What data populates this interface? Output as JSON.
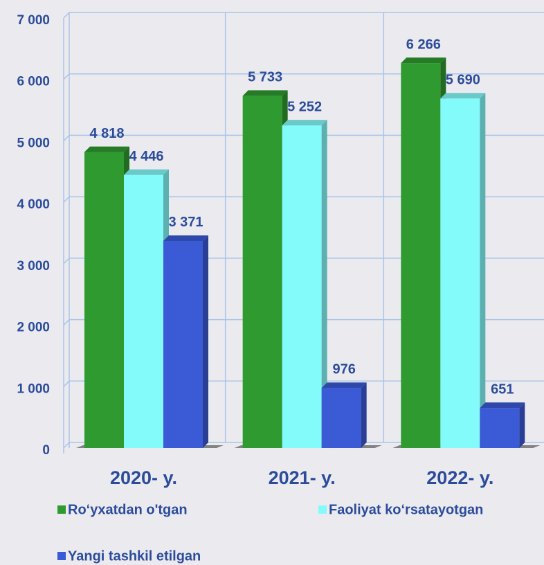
{
  "chart_data": {
    "type": "bar",
    "categories": [
      "2020- y.",
      "2021- y.",
      "2022- y."
    ],
    "series": [
      {
        "name": "Ro‘yxatdan o'tgan",
        "color": "#2f9a2f",
        "values": [
          4818,
          5733,
          6266
        ],
        "value_labels": [
          "4 818",
          "5 733",
          "6 266"
        ]
      },
      {
        "name": "Faoliyat ko‘rsatayotgan",
        "color": "#84fbfb",
        "values": [
          4446,
          5252,
          5690
        ],
        "value_labels": [
          "4 446",
          "5 252",
          "5 690"
        ]
      },
      {
        "name": "Yangi tashkil etilgan",
        "color": "#3a5ad6",
        "values": [
          3371,
          976,
          651
        ],
        "value_labels": [
          "3 371",
          "976",
          "651"
        ]
      }
    ],
    "ylim": [
      0,
      7000
    ],
    "yticks": [
      0,
      {
        "value": 1000,
        "label": "1 000"
      },
      {
        "value": 2000,
        "label": "2 000"
      },
      {
        "value": 3000,
        "label": "3 000"
      },
      {
        "value": 4000,
        "label": "4 000"
      },
      {
        "value": 5000,
        "label": "5 000"
      },
      {
        "value": 6000,
        "label": "6 000"
      },
      {
        "value": 7000,
        "label": "7 000"
      }
    ],
    "grid": true
  }
}
